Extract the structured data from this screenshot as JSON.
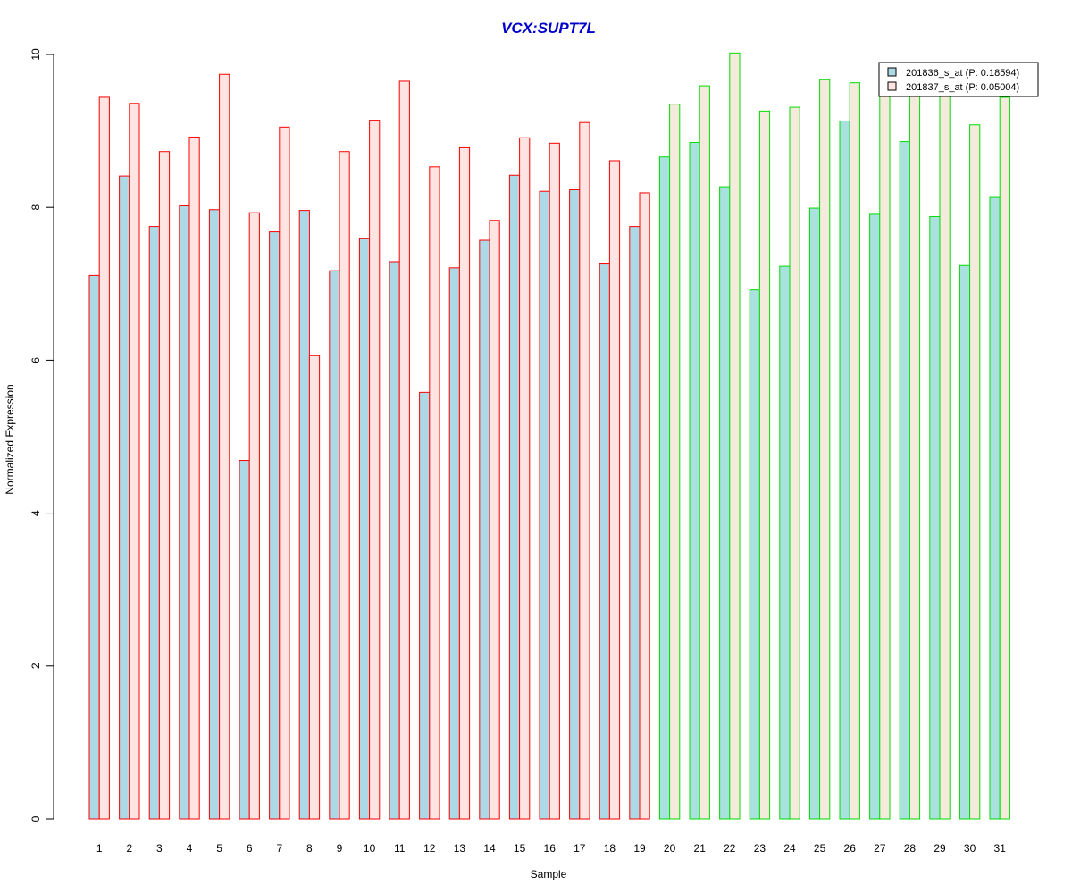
{
  "chart_data": {
    "type": "bar",
    "title": "VCX:SUPT7L",
    "xlabel": "Sample",
    "ylabel": "Normalized Expression",
    "ylim": [
      0,
      10
    ],
    "yticks": [
      "0",
      "2",
      "4",
      "6",
      "8",
      "10"
    ],
    "categories": [
      "1",
      "2",
      "3",
      "4",
      "5",
      "6",
      "7",
      "8",
      "9",
      "10",
      "11",
      "12",
      "13",
      "14",
      "15",
      "16",
      "17",
      "18",
      "19",
      "20",
      "21",
      "22",
      "23",
      "24",
      "25",
      "26",
      "27",
      "28",
      "29",
      "30",
      "31"
    ],
    "series": [
      {
        "name": "201836_s_at (P: 0.18594)",
        "values": [
          7.11,
          8.41,
          7.75,
          8.02,
          7.97,
          4.69,
          7.68,
          7.96,
          7.17,
          7.59,
          7.29,
          5.58,
          7.21,
          7.57,
          8.42,
          8.21,
          8.23,
          7.26,
          7.75,
          8.66,
          8.85,
          8.27,
          6.92,
          7.23,
          7.99,
          9.13,
          7.91,
          8.86,
          7.88,
          7.24,
          8.13
        ]
      },
      {
        "name": "201837_s_at (P: 0.05004)",
        "values": [
          9.44,
          9.36,
          8.73,
          8.92,
          9.74,
          7.93,
          9.05,
          6.06,
          8.73,
          9.14,
          9.65,
          8.53,
          8.78,
          7.83,
          8.91,
          8.84,
          9.11,
          8.61,
          8.19,
          9.35,
          9.59,
          10.02,
          9.26,
          9.31,
          9.67,
          9.63,
          9.6,
          9.62,
          9.58,
          9.08,
          9.44
        ]
      }
    ],
    "groups": [
      {
        "samples": [
          1,
          19
        ],
        "border_color": "#FF0000"
      },
      {
        "samples": [
          20,
          31
        ],
        "border_color": "#00DD00"
      }
    ],
    "fill_colors": {
      "group1": [
        "#ADD8E6",
        "#FFE4E1"
      ],
      "group2": [
        "#A8E1DE",
        "#F5EBDC"
      ]
    },
    "legend_swatches": [
      "#ADD8E6",
      "#FFE4E1"
    ],
    "legend_position": "top-right",
    "title_color": "#0000CC"
  }
}
